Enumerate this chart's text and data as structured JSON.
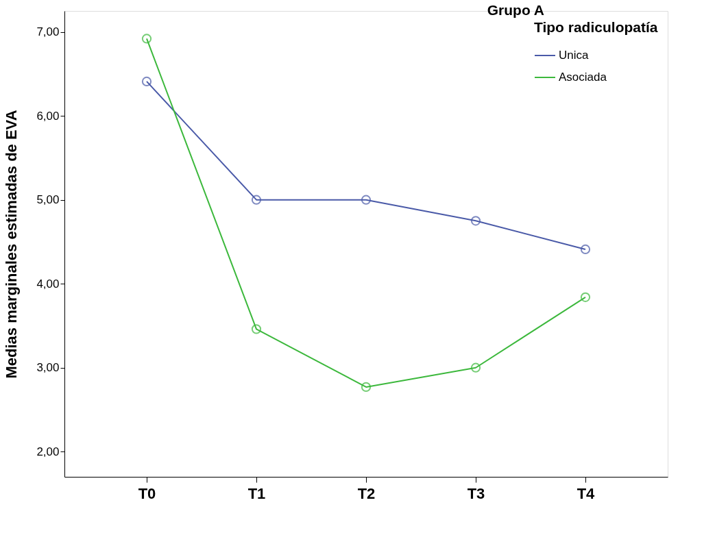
{
  "chart_data": {
    "type": "line",
    "title": "Grupo A",
    "legend_title": "Tipo radiculopatía",
    "ylabel": "Medias marginales estimadas de EVA",
    "categories": [
      "T0",
      "T1",
      "T2",
      "T3",
      "T4"
    ],
    "series": [
      {
        "name": "Unica",
        "color": "#4a5aa8",
        "values": [
          6.41,
          5.0,
          5.0,
          4.75,
          4.41
        ]
      },
      {
        "name": "Asociada",
        "color": "#3cb83c",
        "values": [
          6.92,
          3.46,
          2.77,
          3.0,
          3.84
        ]
      }
    ],
    "ylim": [
      1.7,
      7.25
    ],
    "yticks": [
      {
        "value": 2,
        "label": "2,00"
      },
      {
        "value": 3,
        "label": "3,00"
      },
      {
        "value": 4,
        "label": "4,00"
      },
      {
        "value": 5,
        "label": "5,00"
      },
      {
        "value": 6,
        "label": "6,00"
      },
      {
        "value": 7,
        "label": "7,00"
      }
    ],
    "grid": false,
    "legend": "top right",
    "marker": "circle",
    "line_style": "solid"
  }
}
